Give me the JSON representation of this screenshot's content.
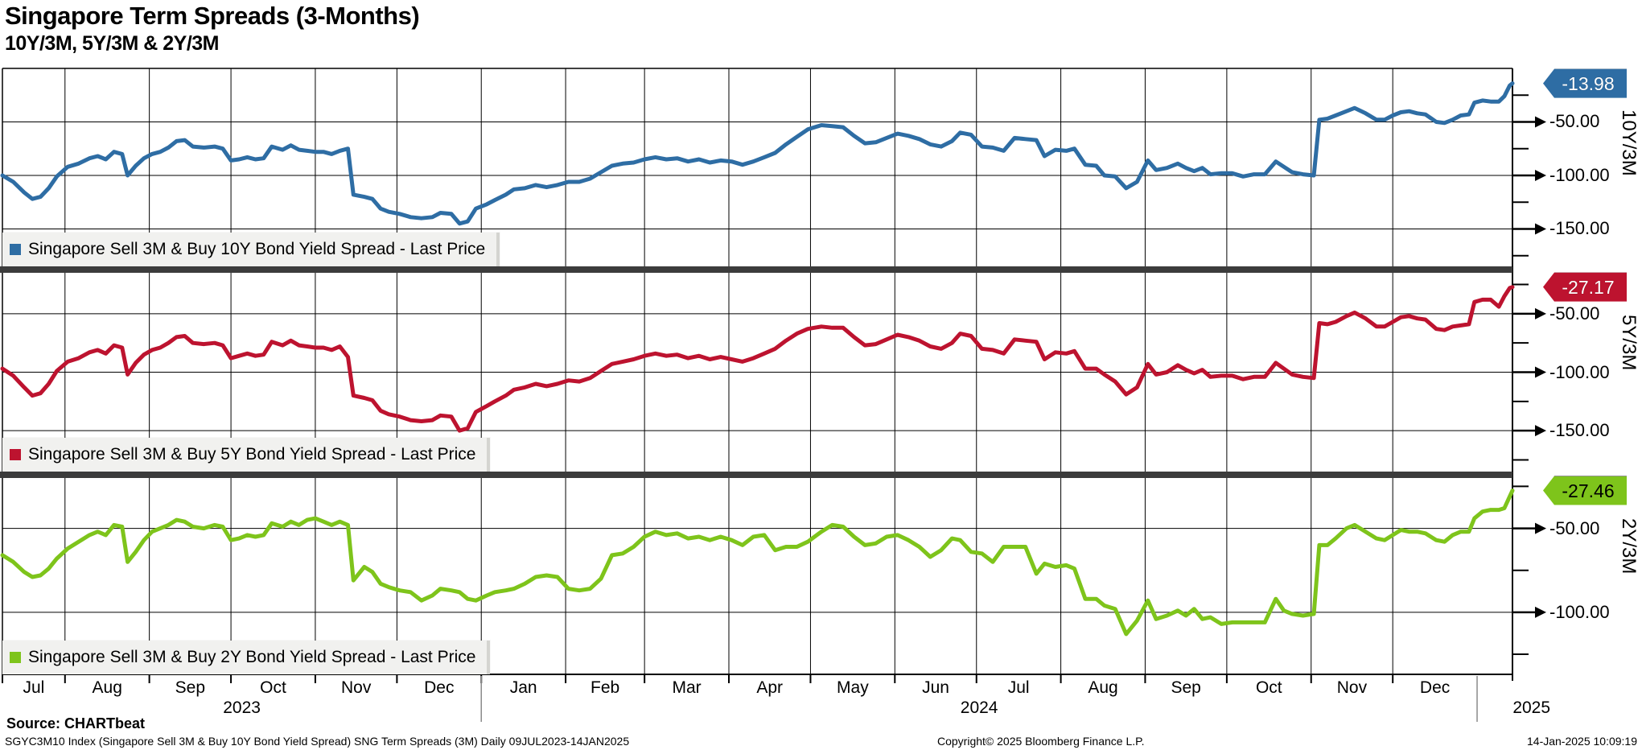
{
  "title": "Singapore Term Spreads (3-Months)",
  "subtitle": "10Y/3M, 5Y/3M & 2Y/3M",
  "footer": {
    "source": "Source: CHARTbeat",
    "detail": "SGYC3M10 Index (Singapore Sell 3M & Buy 10Y Bond Yield Spread) SNG Term Spreads (3M)  Daily 09JUL2023-14JAN2025",
    "copyright": "Copyright© 2025 Bloomberg Finance L.P.",
    "timestamp": "14-Jan-2025 10:09:19"
  },
  "chart_data": {
    "type": "line",
    "title": "Singapore Term Spreads (3-Months)",
    "subtitle": "10Y/3M, 5Y/3M & 2Y/3M",
    "x_axis": {
      "start_date": "09JUL2023",
      "end_date": "14JAN2025",
      "total_days": 555,
      "months": [
        {
          "label": "Jul",
          "start": 0,
          "end": 23
        },
        {
          "label": "Aug",
          "start": 23,
          "end": 54
        },
        {
          "label": "Sep",
          "start": 54,
          "end": 84
        },
        {
          "label": "Oct",
          "start": 84,
          "end": 115
        },
        {
          "label": "Nov",
          "start": 115,
          "end": 145
        },
        {
          "label": "Dec",
          "start": 145,
          "end": 176
        },
        {
          "label": "Jan",
          "start": 176,
          "end": 207
        },
        {
          "label": "Feb",
          "start": 207,
          "end": 236
        },
        {
          "label": "Mar",
          "start": 236,
          "end": 267
        },
        {
          "label": "Apr",
          "start": 267,
          "end": 297
        },
        {
          "label": "May",
          "start": 297,
          "end": 328
        },
        {
          "label": "Jun",
          "start": 328,
          "end": 358
        },
        {
          "label": "Jul",
          "start": 358,
          "end": 389
        },
        {
          "label": "Aug",
          "start": 389,
          "end": 420
        },
        {
          "label": "Sep",
          "start": 420,
          "end": 450
        },
        {
          "label": "Oct",
          "start": 450,
          "end": 481
        },
        {
          "label": "Nov",
          "start": 481,
          "end": 511
        },
        {
          "label": "Dec",
          "start": 511,
          "end": 542
        }
      ],
      "years": [
        {
          "label": "2023",
          "center_day": 88
        },
        {
          "label": "2024",
          "center_day": 359
        },
        {
          "label": "2025",
          "center_day": 562
        }
      ],
      "year_divider_days": [
        176,
        542
      ]
    },
    "x_days": [
      0,
      4,
      8,
      11,
      14,
      17,
      20,
      24,
      28,
      32,
      35,
      38,
      41,
      44,
      46,
      49,
      52,
      55,
      58,
      61,
      64,
      67,
      70,
      74,
      78,
      81,
      84,
      87,
      90,
      93,
      96,
      99,
      103,
      106,
      109,
      112,
      115,
      118,
      121,
      124,
      127,
      129,
      133,
      136,
      139,
      142,
      146,
      150,
      154,
      158,
      161,
      165,
      168,
      171,
      174,
      178,
      181,
      185,
      188,
      192,
      196,
      200,
      204,
      208,
      212,
      216,
      220,
      224,
      228,
      232,
      236,
      240,
      244,
      248,
      252,
      256,
      260,
      264,
      268,
      272,
      276,
      280,
      284,
      288,
      292,
      296,
      301,
      305,
      309,
      313,
      317,
      321,
      325,
      329,
      333,
      337,
      341,
      345,
      349,
      352,
      356,
      360,
      364,
      368,
      372,
      376,
      380,
      383,
      387,
      391,
      394,
      398,
      402,
      405,
      409,
      413,
      417,
      421,
      424,
      428,
      432,
      435,
      438,
      441,
      444,
      448,
      452,
      456,
      460,
      464,
      468,
      471,
      474,
      478,
      482,
      484,
      487,
      490,
      494,
      497,
      501,
      505,
      508,
      511,
      514,
      517,
      520,
      523,
      527,
      530,
      533,
      536,
      539,
      541,
      544,
      547,
      550,
      552,
      554,
      555
    ],
    "series": [
      {
        "name": "10Y/3M",
        "pane_label": "10Y/3M",
        "legend_label": "Singapore Sell 3M & Buy 10Y Bond Yield Spread - Last Price",
        "color": "#2e6da4",
        "badge_text_color": "#ffffff",
        "badge_border": "#17456f",
        "last_value": -13.98,
        "last_label": "-13.98",
        "domain": [
          0,
          -185
        ],
        "yticks": [
          {
            "value": -50,
            "label": "-50.00"
          },
          {
            "value": -100,
            "label": "-100.00"
          },
          {
            "value": -150,
            "label": "-150.00"
          }
        ],
        "values": [
          -100,
          -106,
          -116,
          -122,
          -120,
          -112,
          -101,
          -92,
          -89,
          -84,
          -82,
          -85,
          -78,
          -80,
          -100,
          -91,
          -84,
          -80,
          -78,
          -74,
          -68,
          -67,
          -73,
          -74,
          -73,
          -75,
          -86,
          -85,
          -83,
          -85,
          -84,
          -73,
          -76,
          -72,
          -76,
          -77,
          -78,
          -78,
          -80,
          -77,
          -75,
          -118,
          -120,
          -122,
          -131,
          -134,
          -136,
          -139,
          -140,
          -139,
          -135,
          -136,
          -145,
          -143,
          -131,
          -127,
          -123,
          -118,
          -113,
          -112,
          -109,
          -111,
          -109,
          -106,
          -106,
          -103,
          -97,
          -91,
          -89,
          -88,
          -85,
          -83,
          -85,
          -84,
          -87,
          -85,
          -88,
          -86,
          -87,
          -90,
          -87,
          -83,
          -79,
          -71,
          -64,
          -57,
          -53,
          -54,
          -55,
          -63,
          -70,
          -69,
          -65,
          -61,
          -63,
          -66,
          -71,
          -73,
          -68,
          -60,
          -62,
          -73,
          -74,
          -77,
          -65,
          -66,
          -67,
          -82,
          -76,
          -77,
          -75,
          -90,
          -91,
          -100,
          -101,
          -112,
          -106,
          -86,
          -95,
          -93,
          -89,
          -93,
          -96,
          -93,
          -99,
          -98,
          -98,
          -101,
          -99,
          -99,
          -87,
          -92,
          -97,
          -99,
          -100,
          -48,
          -47,
          -44,
          -40,
          -37,
          -42,
          -48,
          -48,
          -44,
          -41,
          -40,
          -42,
          -43,
          -50,
          -51,
          -48,
          -44,
          -43,
          -32,
          -30,
          -31,
          -31,
          -26,
          -16,
          -13.98
        ]
      },
      {
        "name": "5Y/3M",
        "pane_label": "5Y/3M",
        "legend_label": "Singapore Sell 3M & Buy 5Y Bond Yield Spread - Last Price",
        "color": "#bd132f",
        "badge_text_color": "#ffffff",
        "badge_border": "#7e0c1f",
        "last_value": -27.17,
        "last_label": "-27.17",
        "domain": [
          -15,
          -185
        ],
        "yticks": [
          {
            "value": -50,
            "label": "-50.00"
          },
          {
            "value": -100,
            "label": "-100.00"
          },
          {
            "value": -150,
            "label": "-150.00"
          }
        ],
        "values": [
          -97,
          -103,
          -113,
          -120,
          -118,
          -110,
          -99,
          -91,
          -88,
          -83,
          -81,
          -84,
          -77,
          -79,
          -102,
          -92,
          -85,
          -81,
          -79,
          -75,
          -70,
          -69,
          -75,
          -76,
          -75,
          -77,
          -88,
          -86,
          -84,
          -86,
          -85,
          -74,
          -77,
          -73,
          -77,
          -78,
          -79,
          -79,
          -81,
          -78,
          -87,
          -120,
          -122,
          -124,
          -133,
          -136,
          -138,
          -141,
          -142,
          -141,
          -137,
          -138,
          -150,
          -148,
          -134,
          -129,
          -125,
          -120,
          -115,
          -113,
          -110,
          -112,
          -110,
          -107,
          -108,
          -105,
          -99,
          -93,
          -91,
          -89,
          -86,
          -84,
          -86,
          -85,
          -88,
          -86,
          -89,
          -87,
          -89,
          -91,
          -88,
          -84,
          -80,
          -73,
          -67,
          -63,
          -61,
          -62,
          -62,
          -70,
          -77,
          -76,
          -72,
          -68,
          -70,
          -73,
          -78,
          -80,
          -75,
          -67,
          -69,
          -80,
          -81,
          -84,
          -72,
          -73,
          -74,
          -89,
          -83,
          -84,
          -82,
          -97,
          -97,
          -102,
          -108,
          -119,
          -113,
          -93,
          -102,
          -100,
          -94,
          -98,
          -101,
          -98,
          -104,
          -103,
          -103,
          -106,
          -104,
          -104,
          -92,
          -97,
          -102,
          -104,
          -105,
          -58,
          -59,
          -57,
          -52,
          -49,
          -54,
          -61,
          -61,
          -57,
          -53,
          -52,
          -54,
          -55,
          -63,
          -64,
          -61,
          -60,
          -59,
          -40,
          -38,
          -38,
          -44,
          -35,
          -28,
          -27.17
        ]
      },
      {
        "name": "2Y/3M",
        "pane_label": "2Y/3M",
        "legend_label": "Singapore Sell 3M & Buy 2Y Bond Yield Spread - Last Price",
        "color": "#7ec41b",
        "badge_text_color": "#000000",
        "badge_border": "#2a2a2a",
        "last_value": -27.46,
        "last_label": "-27.46",
        "domain": [
          -20,
          -137
        ],
        "yticks": [
          {
            "value": -50,
            "label": "-50.00"
          },
          {
            "value": -100,
            "label": "-100.00"
          }
        ],
        "values": [
          -66,
          -70,
          -76,
          -79,
          -78,
          -74,
          -68,
          -62,
          -58,
          -54,
          -52,
          -54,
          -48,
          -49,
          -70,
          -64,
          -57,
          -52,
          -50,
          -48,
          -45,
          -46,
          -49,
          -50,
          -48,
          -49,
          -57,
          -56,
          -54,
          -55,
          -54,
          -47,
          -49,
          -46,
          -48,
          -45,
          -44,
          -46,
          -48,
          -46,
          -48,
          -81,
          -73,
          -76,
          -83,
          -85,
          -87,
          -88,
          -93,
          -90,
          -86,
          -87,
          -88,
          -92,
          -93,
          -90,
          -88,
          -87,
          -86,
          -83,
          -79,
          -78,
          -79,
          -86,
          -87,
          -86,
          -80,
          -66,
          -65,
          -61,
          -55,
          -52,
          -54,
          -53,
          -56,
          -55,
          -57,
          -55,
          -57,
          -60,
          -55,
          -54,
          -63,
          -61,
          -61,
          -58,
          -52,
          -48,
          -49,
          -55,
          -60,
          -59,
          -55,
          -54,
          -57,
          -61,
          -67,
          -63,
          -56,
          -57,
          -64,
          -65,
          -70,
          -61,
          -61,
          -61,
          -77,
          -71,
          -73,
          -72,
          -74,
          -92,
          -92,
          -96,
          -98,
          -113,
          -105,
          -93,
          -104,
          -102,
          -99,
          -102,
          -98,
          -104,
          -103,
          -107,
          -106,
          -106,
          -106,
          -106,
          -92,
          -99,
          -101,
          -102,
          -101,
          -60,
          -60,
          -56,
          -50,
          -48,
          -52,
          -56,
          -57,
          -54,
          -51,
          -52,
          -52,
          -53,
          -57,
          -58,
          -54,
          -52,
          -52,
          -44,
          -40,
          -39,
          -39,
          -38,
          -31,
          -27.46
        ]
      }
    ]
  }
}
